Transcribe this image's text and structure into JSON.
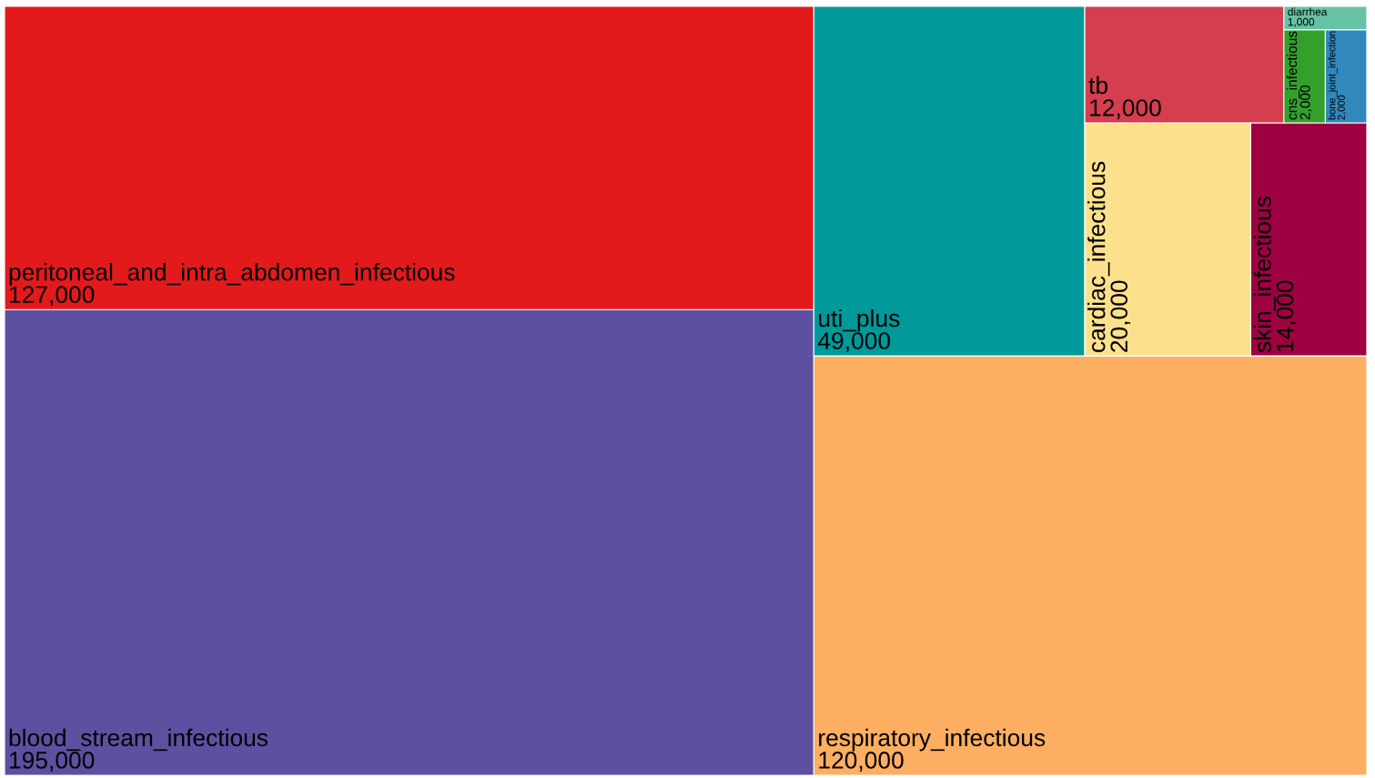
{
  "chart_data": {
    "type": "other",
    "categories": [
      "blood_stream_infectious",
      "peritoneal_and_intra_abdomen_infectious",
      "respiratory_infectious",
      "uti_plus",
      "cardiac_infectious",
      "skin_infectious",
      "tb",
      "cns_infectious",
      "bone_joint_infection",
      "diarrhea"
    ],
    "values": [
      195000,
      127000,
      120000,
      49000,
      20000,
      14000,
      12000,
      2000,
      2000,
      1000
    ],
    "value_labels": [
      "195,000",
      "127,000",
      "120,000",
      "49,000",
      "20,000",
      "14,000",
      "12,000",
      "2,000",
      "2,000",
      "1,000"
    ],
    "colors": [
      "#5e50a1",
      "#e31a1c",
      "#fdae61",
      "#00999a",
      "#fde08b",
      "#9e0142",
      "#d53e4f",
      "#33a02c",
      "#3288bd",
      "#66c2a5"
    ]
  }
}
